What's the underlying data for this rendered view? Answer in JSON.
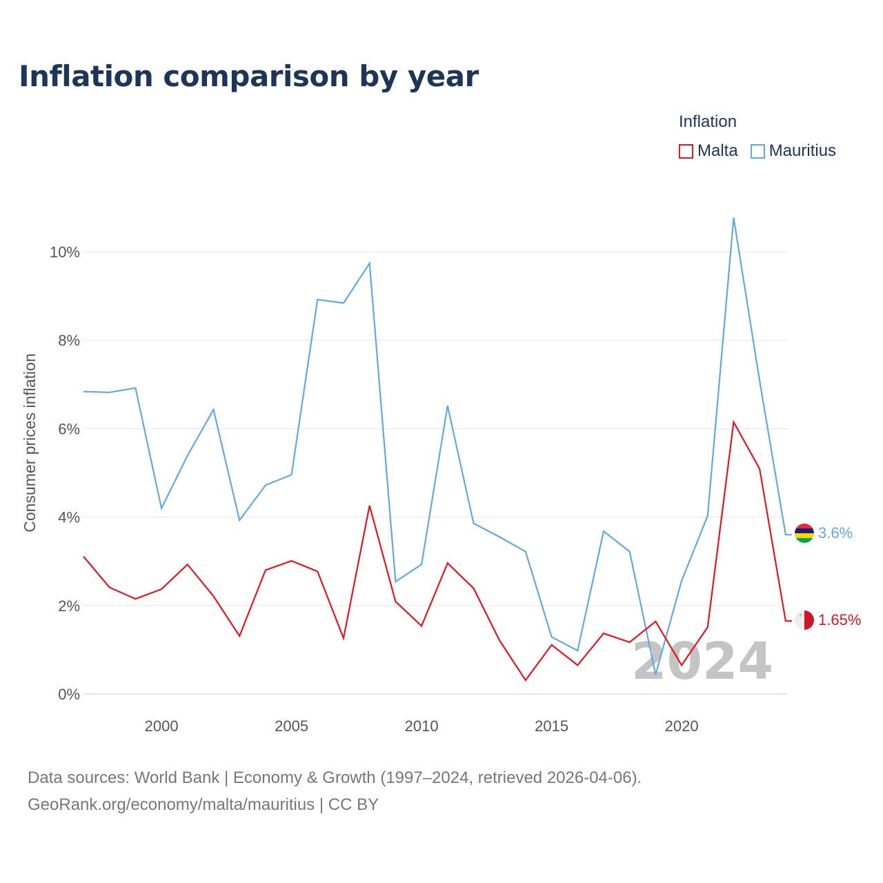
{
  "page_title": "Inflation comparison by year",
  "legend": {
    "title": "Inflation",
    "items": [
      {
        "label": "Malta",
        "color": "#e8131f"
      },
      {
        "label": "Mauritius",
        "color": "#62a8e5"
      }
    ]
  },
  "source": {
    "line1": "Data sources: World Bank | Economy & Growth (1997–2024, retrieved 2026-04-06).",
    "line2": "GeoRank.org/economy/malta/mauritius | CC BY"
  },
  "chart_data": {
    "type": "line",
    "title": "Inflation comparison by year",
    "xlabel": "",
    "ylabel": "Consumer prices inflation",
    "xlim": [
      1997,
      2024
    ],
    "ylim": [
      0,
      11
    ],
    "x_ticks": [
      2000,
      2005,
      2010,
      2015,
      2020
    ],
    "y_ticks": [
      0,
      2,
      4,
      6,
      8,
      10
    ],
    "y_tick_labels": [
      "0%",
      "2%",
      "4%",
      "6%",
      "8%",
      "10%"
    ],
    "current_year_label": "2024",
    "x": [
      1997,
      1998,
      1999,
      2000,
      2001,
      2002,
      2003,
      2004,
      2005,
      2006,
      2007,
      2008,
      2009,
      2010,
      2011,
      2012,
      2013,
      2014,
      2015,
      2016,
      2017,
      2018,
      2019,
      2020,
      2021,
      2022,
      2023,
      2024
    ],
    "series": [
      {
        "name": "Malta",
        "color": "#e8131f",
        "end_label": "1.65%",
        "flag": "malta",
        "values": [
          3.11,
          2.41,
          2.15,
          2.37,
          2.93,
          2.21,
          1.31,
          2.8,
          3.01,
          2.77,
          1.26,
          4.26,
          2.09,
          1.54,
          2.96,
          2.39,
          1.21,
          0.31,
          1.11,
          0.65,
          1.37,
          1.17,
          1.64,
          0.65,
          1.51,
          6.15,
          5.09,
          1.65
        ]
      },
      {
        "name": "Mauritius",
        "color": "#62a8e5",
        "end_label": "3.6%",
        "flag": "mauritius",
        "values": [
          6.84,
          6.82,
          6.92,
          4.2,
          5.39,
          6.43,
          3.93,
          4.72,
          4.96,
          8.92,
          8.84,
          9.74,
          2.54,
          2.93,
          6.52,
          3.86,
          3.55,
          3.22,
          1.29,
          0.98,
          3.68,
          3.22,
          0.44,
          2.56,
          4.03,
          10.77,
          7.08,
          3.6
        ]
      }
    ]
  }
}
